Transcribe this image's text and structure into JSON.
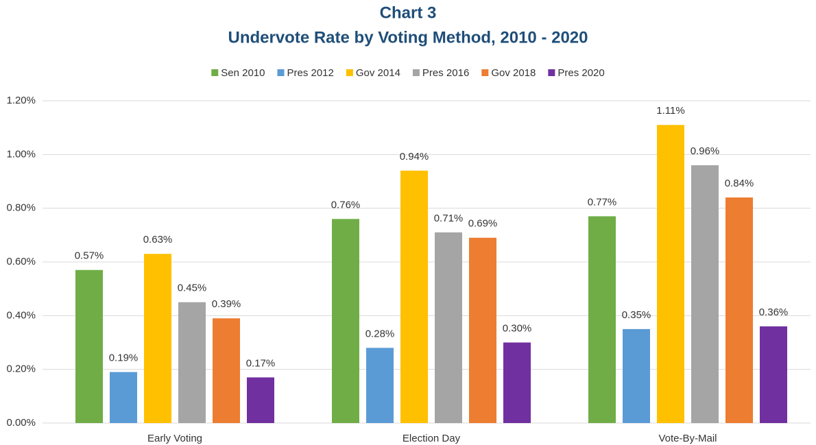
{
  "chart_data": {
    "type": "bar",
    "title": "Chart 3",
    "subtitle": "Undervote Rate by Voting Method, 2010 - 2020",
    "categories": [
      "Early Voting",
      "Election Day",
      "Vote-By-Mail"
    ],
    "series": [
      {
        "name": "Sen 2010",
        "color": "#70ad47",
        "values": [
          0.57,
          0.76,
          0.77
        ],
        "value_labels": [
          "0.57%",
          "0.76%",
          "0.77%"
        ]
      },
      {
        "name": "Pres 2012",
        "color": "#5b9bd5",
        "values": [
          0.19,
          0.28,
          0.35
        ],
        "value_labels": [
          "0.19%",
          "0.28%",
          "0.35%"
        ]
      },
      {
        "name": "Gov 2014",
        "color": "#ffc000",
        "values": [
          0.63,
          0.94,
          1.11
        ],
        "value_labels": [
          "0.63%",
          "0.94%",
          "1.11%"
        ]
      },
      {
        "name": "Pres 2016",
        "color": "#a5a5a5",
        "values": [
          0.45,
          0.71,
          0.96
        ],
        "value_labels": [
          "0.45%",
          "0.71%",
          "0.96%"
        ]
      },
      {
        "name": "Gov 2018",
        "color": "#ed7d31",
        "values": [
          0.39,
          0.69,
          0.84
        ],
        "value_labels": [
          "0.39%",
          "0.69%",
          "0.84%"
        ]
      },
      {
        "name": "Pres 2020",
        "color": "#7030a0",
        "values": [
          0.17,
          0.3,
          0.36
        ],
        "value_labels": [
          "0.17%",
          "0.30%",
          "0.36%"
        ]
      }
    ],
    "ylim": [
      0,
      1.2
    ],
    "yticks": [
      {
        "value": 0,
        "label": "0.00%"
      },
      {
        "value": 0.2,
        "label": "0.20%"
      },
      {
        "value": 0.4,
        "label": "0.40%"
      },
      {
        "value": 0.6,
        "label": "0.60%"
      },
      {
        "value": 0.8,
        "label": "0.80%"
      },
      {
        "value": 1.0,
        "label": "1.00%"
      },
      {
        "value": 1.2,
        "label": "1.20%"
      }
    ],
    "grid": true,
    "legend": "top"
  }
}
